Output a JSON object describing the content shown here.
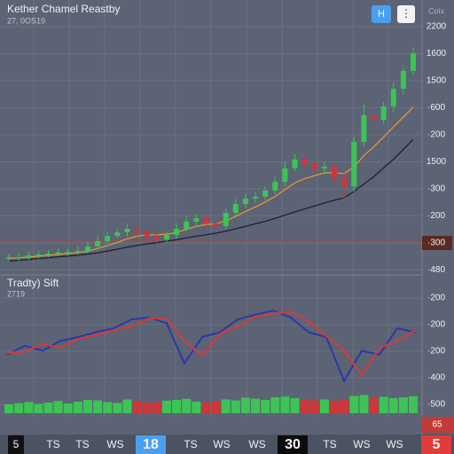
{
  "header": {
    "title": "Kether Chamel Reastby",
    "subtitle": "27, 0OS19",
    "button_h": "H",
    "button_menu": "⋮",
    "label_right": "Coix"
  },
  "price_panel": {
    "axis_labels": [
      "2200",
      "1600",
      "1500",
      "·600",
      "·200",
      "1500",
      "·300",
      "·200",
      "·300",
      "·480"
    ],
    "ylim": [
      0,
      100
    ],
    "open": [
      3,
      3.6,
      3.6,
      4.3,
      4.6,
      5,
      5.4,
      5.7,
      6,
      7.9,
      10,
      12.1,
      13.6,
      15,
      13.6,
      11.4,
      10.7,
      12.5,
      15,
      17.9,
      19.3,
      17.1,
      16.1,
      21.4,
      25,
      27.1,
      27.9,
      30.4,
      33.9,
      39.3,
      42.9,
      41.1,
      39.3,
      40,
      35.7,
      32.1,
      50,
      60.7,
      58.9,
      64.3,
      71.4,
      78.6
    ],
    "close": [
      3.6,
      3.6,
      4.3,
      4.6,
      5,
      5.4,
      5.7,
      6,
      7.9,
      10,
      12.1,
      13.6,
      15,
      13.6,
      11.4,
      10.7,
      12.5,
      15,
      17.9,
      19.3,
      17.1,
      16.1,
      21.4,
      25,
      27.1,
      27.9,
      30.4,
      33.9,
      39.3,
      42.9,
      41.1,
      39.3,
      40,
      35.7,
      32.1,
      50,
      60.7,
      58.9,
      64.3,
      71.4,
      78.6,
      85.7
    ],
    "high": [
      5,
      5,
      6,
      6,
      6.5,
      7,
      7,
      8,
      9.5,
      12,
      14,
      15,
      17,
      16,
      15,
      13,
      14,
      17,
      20,
      21,
      20,
      18,
      23,
      27,
      29,
      30,
      32,
      36,
      42,
      45,
      44,
      42,
      42,
      41,
      38,
      52,
      65,
      62,
      66,
      74,
      80,
      88
    ],
    "low": [
      2,
      2,
      2.5,
      3,
      3.5,
      4,
      4,
      4.5,
      5,
      7,
      9,
      11,
      12,
      12,
      10,
      9,
      9.5,
      11,
      14,
      16,
      15.5,
      14.5,
      15,
      20,
      23.5,
      25.5,
      26.5,
      29,
      32,
      38,
      39.5,
      37.5,
      37,
      33.5,
      27,
      30,
      48,
      56,
      57,
      62,
      69,
      77
    ],
    "ma_fast": {
      "color": "#e8962e",
      "values": [
        3,
        3.3,
        3.6,
        4,
        4.3,
        4.7,
        5,
        5.4,
        6,
        7,
        8.2,
        9.5,
        11,
        12,
        12.5,
        12.6,
        12.8,
        13.5,
        14.8,
        16,
        16.7,
        17,
        18.2,
        20,
        22,
        23.8,
        25.8,
        28,
        30.8,
        33.5,
        35.2,
        36.4,
        37.5,
        37.6,
        37.2,
        40,
        44.5,
        48,
        52,
        56,
        60,
        64
      ]
    },
    "ma_slow": {
      "color": "#1c2233",
      "values": [
        2,
        2.3,
        2.6,
        3,
        3.3,
        3.7,
        4,
        4.4,
        4.8,
        5.3,
        6,
        6.8,
        7.6,
        8.3,
        8.9,
        9.4,
        10,
        10.6,
        11.3,
        12,
        12.6,
        13.2,
        14,
        15,
        16,
        17,
        18,
        19.2,
        20.5,
        21.8,
        23,
        24.2,
        25.4,
        26.5,
        27.5,
        30,
        33,
        36,
        39.5,
        43,
        47,
        51
      ]
    },
    "up_color": "#3cc455",
    "down_color": "#d0353a",
    "price_tag": "65"
  },
  "oscillator_panel": {
    "title": "Tradty) Sift",
    "subtitle": "2719",
    "axis_labels": [
      "·200",
      "·200",
      "·200",
      "·400",
      "·500"
    ],
    "ylim": [
      0,
      100
    ],
    "series": [
      {
        "color": "#2a3aa8",
        "values": [
          41,
          50,
          45,
          55,
          59,
          64,
          68,
          77,
          79,
          73,
          32,
          59,
          64,
          77,
          82,
          86,
          79,
          64,
          59,
          14,
          45,
          41,
          68,
          64
        ]
      },
      {
        "color": "#d83a3a",
        "values": [
          43,
          44,
          52,
          48,
          57,
          61,
          66,
          70,
          78,
          78,
          55,
          40,
          62,
          70,
          80,
          83,
          85,
          75,
          60,
          45,
          20,
          48,
          55,
          66
        ]
      }
    ],
    "volume": [
      40,
      45,
      50,
      42,
      48,
      55,
      44,
      52,
      60,
      58,
      50,
      46,
      62,
      55,
      48,
      50,
      57,
      60,
      65,
      52,
      48,
      55,
      62,
      58,
      70,
      66,
      60,
      72,
      75,
      68,
      64,
      58,
      62,
      56,
      60,
      78,
      82,
      70,
      74,
      68,
      72,
      76
    ],
    "volume_ylim": [
      0,
      100
    ]
  },
  "bottom_bar": [
    "5",
    "TS",
    "TS",
    "WS",
    "18",
    "TS",
    "WS",
    "WS",
    "30",
    "TS",
    "WS",
    "WS",
    "5"
  ]
}
